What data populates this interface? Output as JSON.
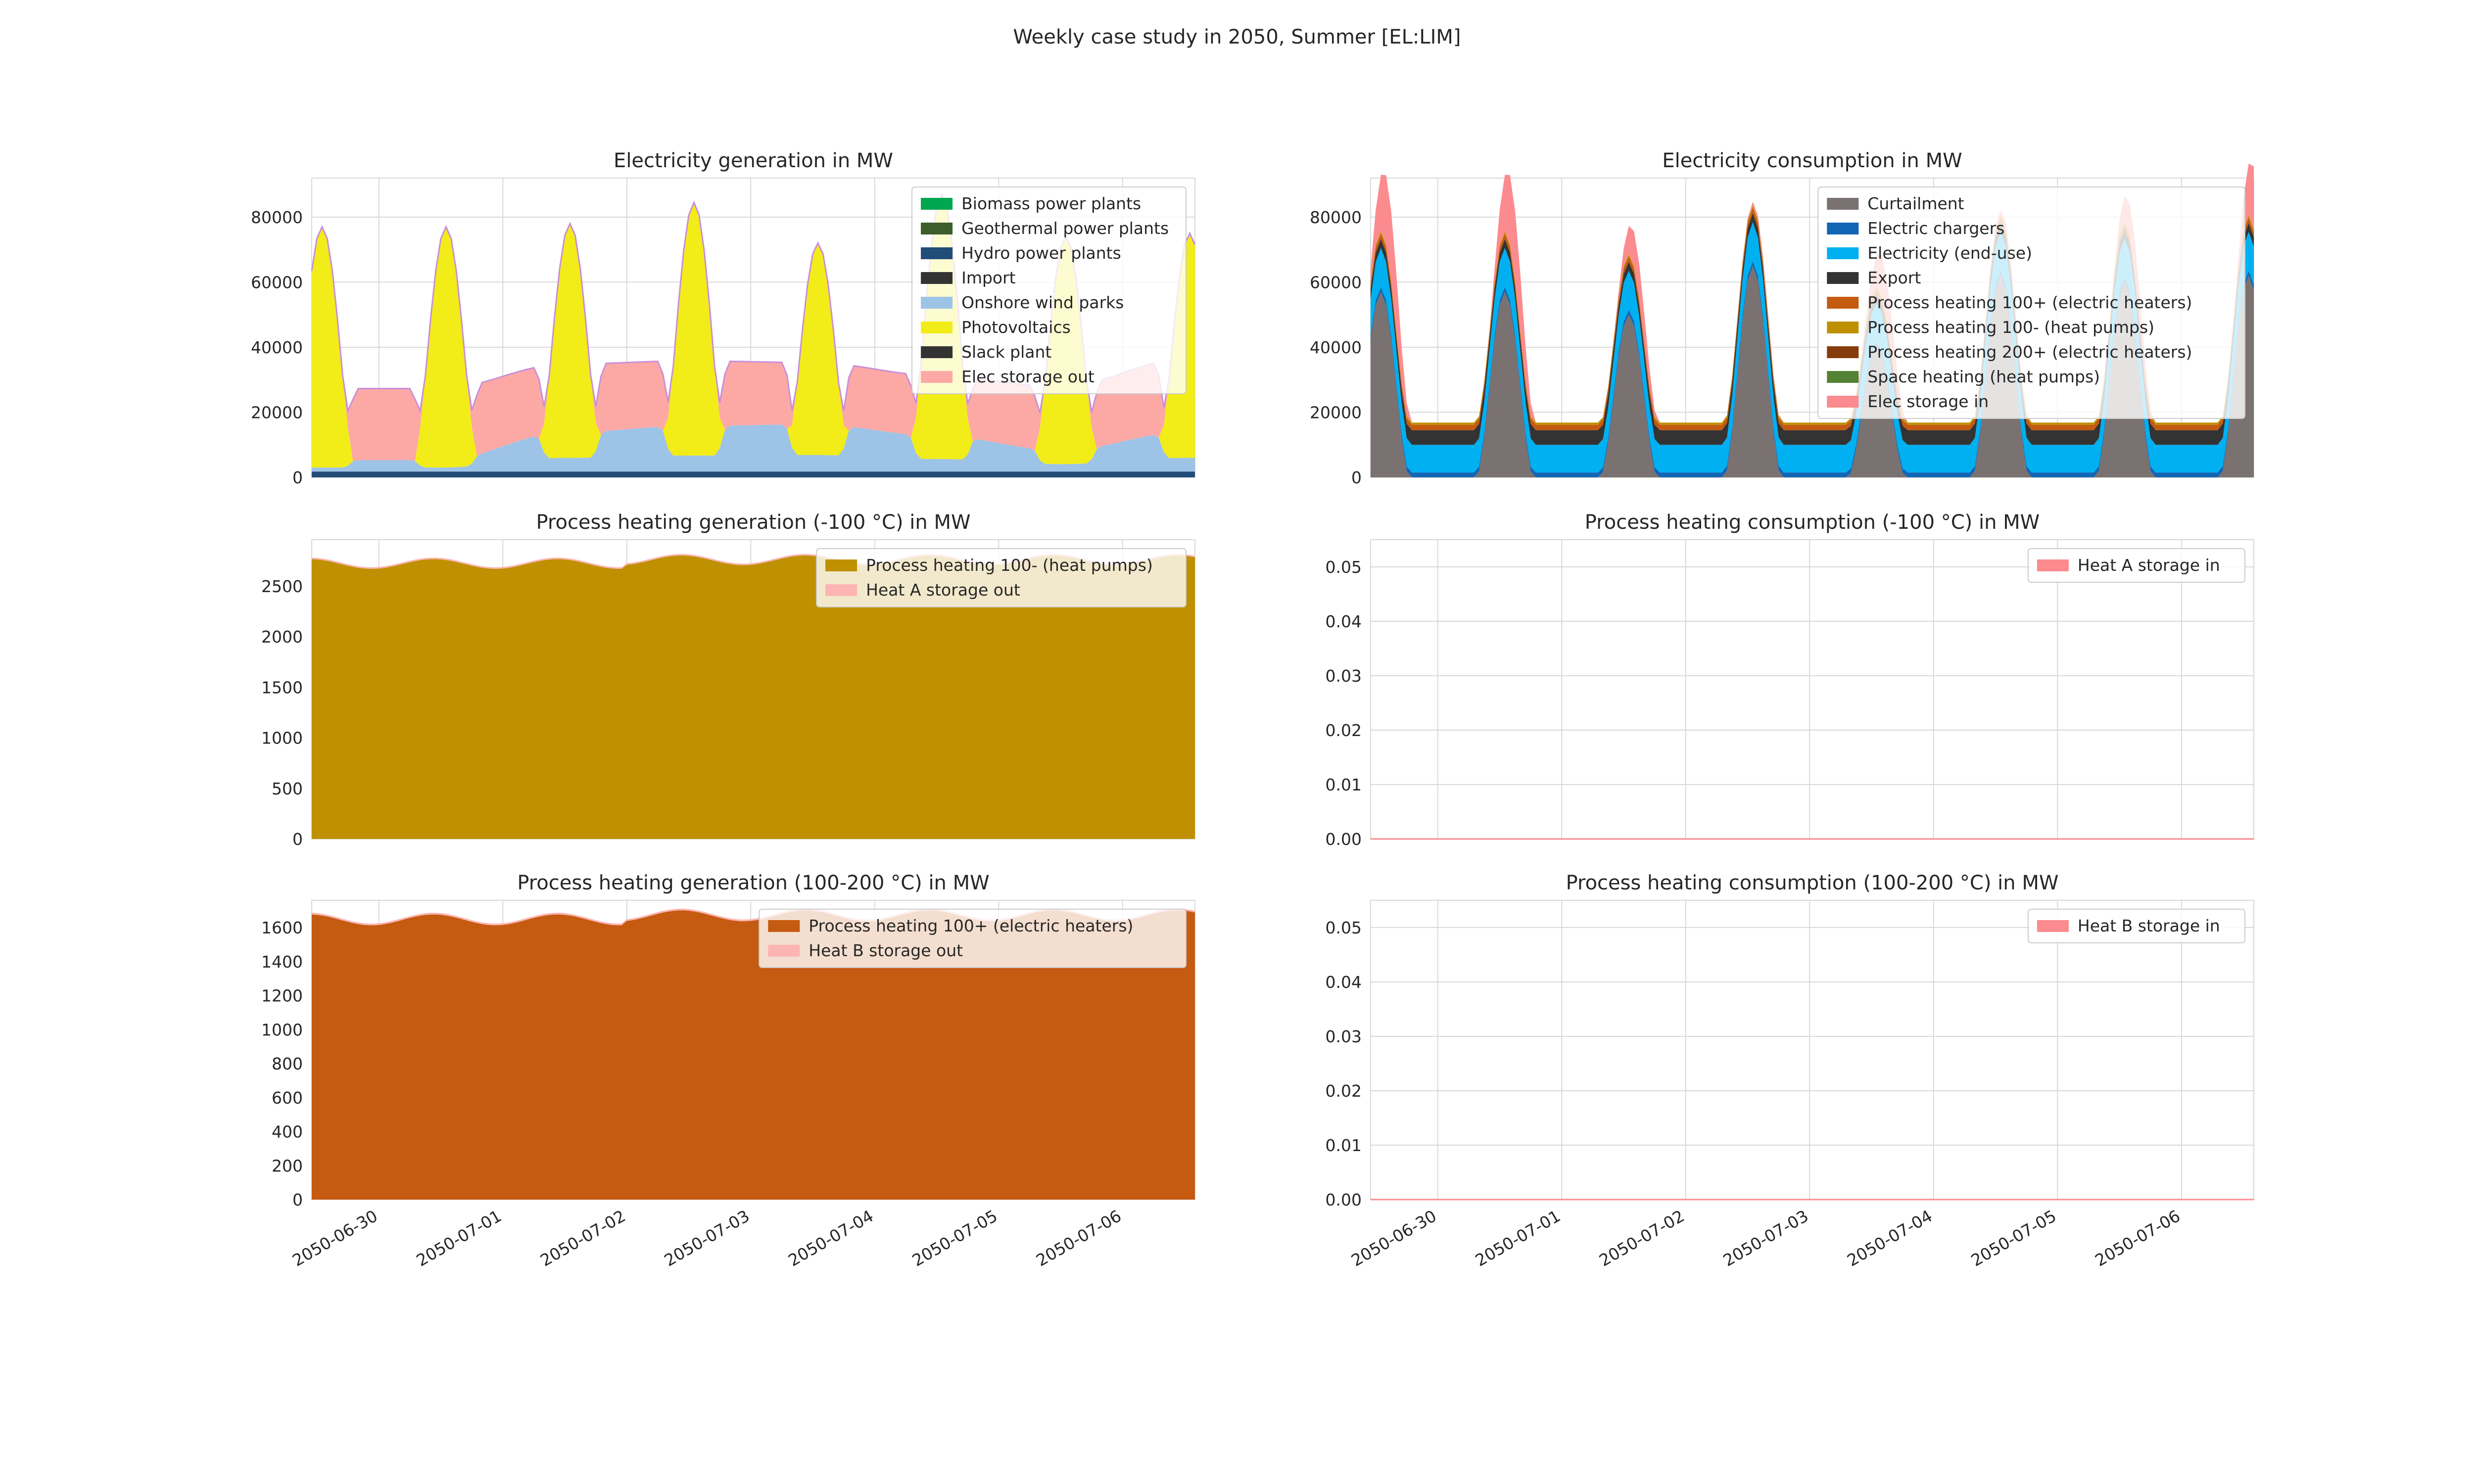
{
  "figure": {
    "title": "Weekly case study in 2050, Summer [EL:LIM]"
  },
  "dates": [
    "2050-06-30",
    "2050-07-01",
    "2050-07-02",
    "2050-07-03",
    "2050-07-04",
    "2050-07-05",
    "2050-07-06"
  ],
  "chart_data": [
    {
      "id": "elec-gen",
      "type": "area",
      "stacked": true,
      "title": "Electricity generation in MW",
      "xlabel": "",
      "ylabel": "",
      "xlim": [
        "2050-06-29 11:00",
        "2050-07-06 14:00"
      ],
      "ylim": [
        0,
        92000
      ],
      "yticks": [
        0,
        20000,
        40000,
        60000,
        80000
      ],
      "grid": true,
      "legend_position": "top-right",
      "peak_hour": 13,
      "pv_peaks": [
        77000,
        78000,
        84500,
        72000,
        87000,
        74000,
        75000
      ],
      "series": [
        {
          "name": "Biomass power plants",
          "color": "#00a650",
          "value": 0
        },
        {
          "name": "Geothermal power plants",
          "color": "#3b5e2b",
          "value": 0
        },
        {
          "name": "Hydro power plants",
          "color": "#214d78",
          "value": 1800
        },
        {
          "name": "Import",
          "color": "#333333",
          "value": 0
        },
        {
          "name": "Onshore wind parks",
          "color": "#9dc3e6",
          "daily_max": [
            3500,
            12000,
            14000,
            14500,
            11000,
            6500,
            12000
          ]
        },
        {
          "name": "Photovoltaics",
          "color": "#f2ec18"
        },
        {
          "name": "Slack plant",
          "color": "#333333",
          "value": 0
        },
        {
          "name": "Elec storage out",
          "color": "#fca9a5",
          "level": [
            22000,
            21000,
            20000,
            19000,
            18500,
            19500,
            22500
          ]
        }
      ]
    },
    {
      "id": "elec-con",
      "type": "area",
      "stacked": true,
      "title": "Electricity consumption in MW",
      "xlabel": "",
      "ylabel": "",
      "xlim": [
        "2050-06-29 11:00",
        "2050-07-06 14:00"
      ],
      "ylim": [
        0,
        92000
      ],
      "yticks": [
        0,
        20000,
        40000,
        60000,
        80000
      ],
      "grid": true,
      "legend_position": "top-right",
      "series": [
        {
          "name": "Curtailment",
          "color": "#7a7271",
          "daily_max": [
            57000,
            50000,
            65000,
            40000,
            62000,
            60000,
            62000
          ]
        },
        {
          "name": "Electric chargers",
          "color": "#1366b4",
          "value": 1500
        },
        {
          "name": "Electricity (end-use)",
          "color": "#00b0f0",
          "base": 8500,
          "peak_extra": 3500
        },
        {
          "name": "Export",
          "color": "#333333",
          "value": 4500
        },
        {
          "name": "Process heating 100+ (electric heaters)",
          "color": "#c55a11",
          "value": 1650
        },
        {
          "name": "Process heating 100- (heat pumps)",
          "color": "#bf9000",
          "value": 700
        },
        {
          "name": "Process heating 200+ (electric heaters)",
          "color": "#843c0c",
          "value": 0
        },
        {
          "name": "Space heating (heat pumps)",
          "color": "#548235",
          "value": 0
        },
        {
          "name": "Elec storage in",
          "color": "#fb8b8e",
          "daily_max": [
            22000,
            11000,
            1500,
            13000,
            2000,
            10000,
            20000
          ]
        }
      ]
    },
    {
      "id": "ph100m-gen",
      "type": "area",
      "stacked": true,
      "title": "Process heating generation (-100 °C) in MW",
      "xlabel": "",
      "ylabel": "",
      "xlim": [
        "2050-06-29 11:00",
        "2050-07-06 14:00"
      ],
      "ylim": [
        0,
        2960
      ],
      "yticks": [
        0,
        500,
        1000,
        1500,
        2000,
        2500
      ],
      "grid": true,
      "legend_position": "top-right",
      "series": [
        {
          "name": "Process heating 100- (heat pumps)",
          "color": "#bf9000",
          "base": 2720,
          "amplitude": 60
        },
        {
          "name": "Heat A storage out",
          "color": "#fcb5b3",
          "value": 15
        }
      ]
    },
    {
      "id": "ph100m-con",
      "type": "area",
      "stacked": true,
      "title": "Process heating consumption (-100 °C) in MW",
      "xlabel": "",
      "ylabel": "",
      "xlim": [
        "2050-06-29 11:00",
        "2050-07-06 14:00"
      ],
      "ylim": [
        0,
        0.055
      ],
      "yticks": [
        0.0,
        0.01,
        0.02,
        0.03,
        0.04,
        0.05
      ],
      "ytick_labels": [
        "0.00",
        "0.01",
        "0.02",
        "0.03",
        "0.04",
        "0.05"
      ],
      "grid": true,
      "legend_position": "top-right",
      "series": [
        {
          "name": "Heat A storage in",
          "color": "#fb8b8e",
          "value": 0
        }
      ]
    },
    {
      "id": "ph100p-gen",
      "type": "area",
      "stacked": true,
      "title": "Process heating generation (100-200 °C) in MW",
      "xlabel": "",
      "ylabel": "",
      "xlim": [
        "2050-06-29 11:00",
        "2050-07-06 14:00"
      ],
      "ylim": [
        0,
        1760
      ],
      "yticks": [
        0,
        200,
        400,
        600,
        800,
        1000,
        1200,
        1400,
        1600
      ],
      "grid": true,
      "legend_position": "top-right",
      "series": [
        {
          "name": "Process heating 100+ (electric heaters)",
          "color": "#c55a11",
          "base": 1645,
          "amplitude": 40
        },
        {
          "name": "Heat B storage out",
          "color": "#fcb5b3",
          "value": 10
        }
      ]
    },
    {
      "id": "ph100p-con",
      "type": "area",
      "stacked": true,
      "title": "Process heating consumption (100-200 °C) in MW",
      "xlabel": "",
      "ylabel": "",
      "xlim": [
        "2050-06-29 11:00",
        "2050-07-06 14:00"
      ],
      "ylim": [
        0,
        0.055
      ],
      "yticks": [
        0.0,
        0.01,
        0.02,
        0.03,
        0.04,
        0.05
      ],
      "ytick_labels": [
        "0.00",
        "0.01",
        "0.02",
        "0.03",
        "0.04",
        "0.05"
      ],
      "grid": true,
      "legend_position": "top-right",
      "series": [
        {
          "name": "Heat B storage in",
          "color": "#fb8b8e",
          "value": 0
        }
      ]
    }
  ]
}
